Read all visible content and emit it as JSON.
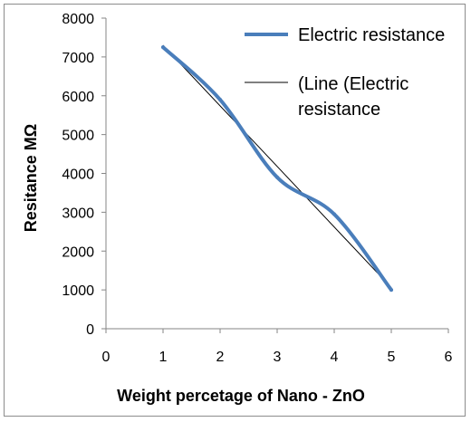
{
  "chart_data": {
    "type": "scatter",
    "xlabel": "Weight percetage of Nano - ZnO",
    "ylabel": "Resitance  MΩ",
    "xlim": [
      0,
      6
    ],
    "ylim": [
      0,
      8000
    ],
    "x_ticks": [
      "0",
      "1",
      "2",
      "3",
      "4",
      "5",
      "6"
    ],
    "y_ticks": [
      "0",
      "1000",
      "2000",
      "3000",
      "4000",
      "5000",
      "6000",
      "7000",
      "8000"
    ],
    "grid": false,
    "legend_position": "top-right",
    "series": [
      {
        "name": "Electric resistance",
        "style": "smooth-line",
        "color": "#4a7ebb",
        "x": [
          1,
          2,
          3,
          4,
          5
        ],
        "y": [
          7250,
          5900,
          3900,
          2950,
          1000
        ]
      },
      {
        "name": "(Line (Electric resistance",
        "legend_lines": [
          "(Line (Electric",
          "resistance"
        ],
        "style": "linear-trendline",
        "color": "#000000",
        "x": [
          1,
          5
        ],
        "y": [
          7300,
          1060
        ]
      }
    ]
  }
}
